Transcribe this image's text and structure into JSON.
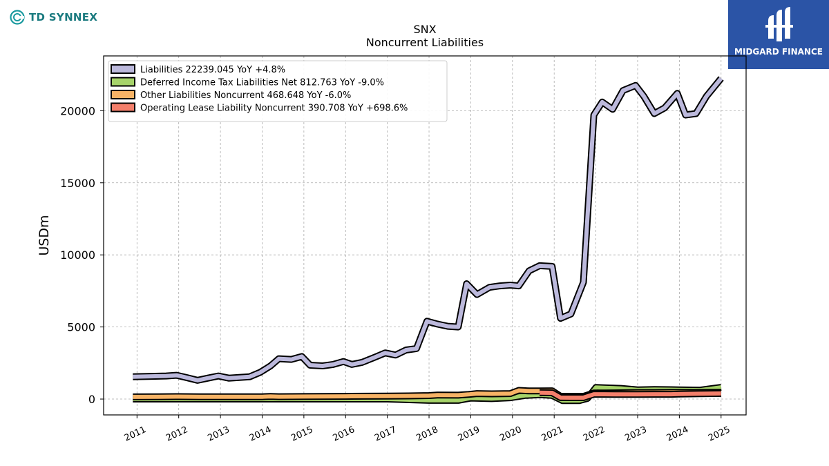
{
  "brand_left": {
    "name": "TD SYNNEX"
  },
  "brand_right": {
    "name": "MIDGARD FINANCE"
  },
  "chart_data": {
    "type": "area",
    "title": "SNX",
    "subtitle": "Noncurrent  Liabilities",
    "ylabel": "USDm",
    "xlabel": "",
    "ylim": [
      -1100,
      23800
    ],
    "xlim": [
      2010.2,
      2025.6
    ],
    "yticks": [
      0,
      5000,
      10000,
      15000,
      20000
    ],
    "xticks": [
      2011,
      2012,
      2013,
      2014,
      2015,
      2016,
      2017,
      2018,
      2019,
      2020,
      2021,
      2022,
      2023,
      2024,
      2025
    ],
    "grid": true,
    "legend_position": "top-left",
    "legend": [
      "Liabilities  22239.045 YoY +4.8%",
      "Deferred Income Tax Liabilities Net  812.763 YoY -9.0%",
      "Other Liabilities Noncurrent  468.648 YoY -6.0%",
      "Operating Lease Liability Noncurrent  390.708 YoY +698.6%"
    ],
    "series": [
      {
        "name": "Liabilities",
        "color": "#bcb9dc",
        "x": [
          2010.9,
          2011.7,
          2011.95,
          2012.2,
          2012.45,
          2012.7,
          2012.95,
          2013.2,
          2013.7,
          2013.95,
          2014.2,
          2014.4,
          2014.7,
          2014.95,
          2015.15,
          2015.45,
          2015.7,
          2015.95,
          2016.15,
          2016.4,
          2016.7,
          2016.95,
          2017.2,
          2017.45,
          2017.7,
          2017.95,
          2018.2,
          2018.45,
          2018.7,
          2018.9,
          2019.15,
          2019.45,
          2019.7,
          2019.95,
          2020.15,
          2020.4,
          2020.65,
          2020.95,
          2021.15,
          2021.4,
          2021.7,
          2021.95,
          2022.15,
          2022.4,
          2022.65,
          2022.95,
          2023.15,
          2023.4,
          2023.65,
          2023.95,
          2024.15,
          2024.4,
          2024.65,
          2025.0
        ],
        "y": [
          1550,
          1600,
          1650,
          1480,
          1300,
          1450,
          1600,
          1450,
          1550,
          1850,
          2300,
          2800,
          2750,
          2950,
          2350,
          2300,
          2400,
          2600,
          2400,
          2550,
          2900,
          3200,
          3050,
          3400,
          3500,
          5400,
          5200,
          5050,
          5000,
          8000,
          7250,
          7750,
          7850,
          7900,
          7850,
          8900,
          9250,
          9200,
          5600,
          5900,
          8100,
          19700,
          20600,
          20100,
          21400,
          21750,
          21000,
          19800,
          20200,
          21200,
          19700,
          19800,
          21000,
          22239
        ]
      },
      {
        "name": "Deferred Income Tax Liabilities Net",
        "color": "#a6d36a",
        "x": [
          2010.9,
          2012,
          2013,
          2014,
          2015,
          2016,
          2017,
          2018,
          2018.7,
          2019,
          2019.5,
          2019.95,
          2020.3,
          2020.65,
          2020.95,
          2021.2,
          2021.6,
          2021.8,
          2022.0,
          2022.2,
          2022.6,
          2023.0,
          2023.4,
          2023.8,
          2024.0,
          2024.5,
          2025.0
        ],
        "y": [
          0,
          0,
          0,
          0,
          0,
          0,
          0,
          -90,
          -90,
          70,
          30,
          90,
          250,
          300,
          250,
          -110,
          -110,
          50,
          800,
          780,
          740,
          640,
          660,
          650,
          640,
          620,
          812.763
        ]
      },
      {
        "name": "Other Liabilities Noncurrent",
        "color": "#f7b366",
        "x": [
          2010.9,
          2011.5,
          2012,
          2012.5,
          2013,
          2013.5,
          2014,
          2014.2,
          2014.4,
          2015,
          2015.5,
          2016,
          2016.5,
          2017,
          2017.5,
          2018,
          2018.2,
          2018.7,
          2018.95,
          2019.15,
          2019.5,
          2019.95,
          2020.15,
          2020.4,
          2020.65,
          2020.95,
          2021.15,
          2021.4,
          2021.7,
          2021.95,
          2022.2,
          2022.6,
          2023.0,
          2023.4,
          2023.8,
          2024.0,
          2024.5,
          2025.0
        ],
        "y": [
          150,
          160,
          170,
          160,
          155,
          155,
          160,
          180,
          165,
          175,
          180,
          190,
          200,
          205,
          215,
          240,
          280,
          270,
          320,
          380,
          360,
          380,
          600,
          560,
          560,
          570,
          200,
          190,
          190,
          420,
          420,
          430,
          450,
          450,
          460,
          460,
          460,
          468.648
        ]
      },
      {
        "name": "Operating Lease Liability Noncurrent",
        "color": "#f47f6b",
        "x": [
          2020.65,
          2020.95,
          2021.15,
          2021.4,
          2021.7,
          2021.95,
          2022.2,
          2022.6,
          2023.0,
          2023.4,
          2023.8,
          2024.0,
          2024.5,
          2025.0
        ],
        "y": [
          440,
          430,
          100,
          95,
          95,
          330,
          330,
          320,
          320,
          330,
          330,
          350,
          370,
          390.708
        ]
      }
    ]
  }
}
